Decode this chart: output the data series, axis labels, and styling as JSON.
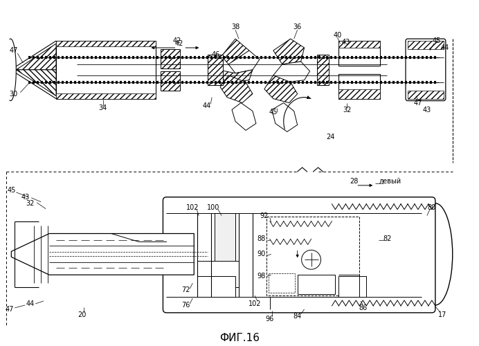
{
  "title": "ФИГ.16",
  "bg_color": "#ffffff",
  "line_color": "#000000",
  "fig_width": 6.92,
  "fig_height": 5.0,
  "dpi": 100
}
